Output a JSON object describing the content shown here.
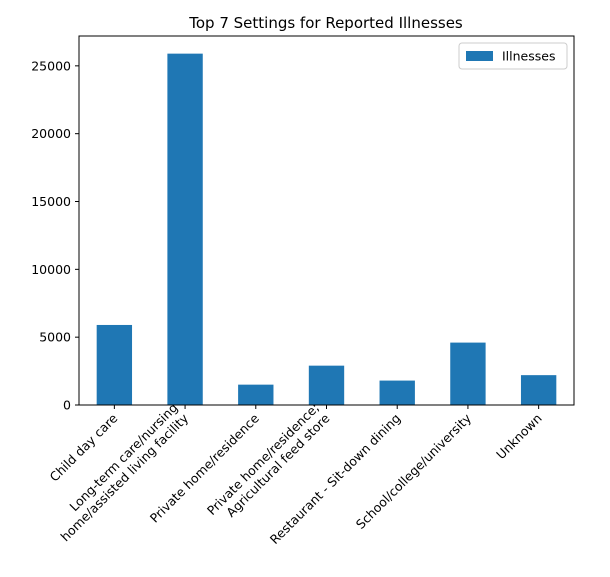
{
  "chart_data": {
    "type": "bar",
    "title": "Top 7 Settings for Reported Illnesses",
    "xlabel": "",
    "ylabel": "",
    "categories": [
      [
        "Child day care"
      ],
      [
        "Long-term care/nursing",
        "home/assisted living facility"
      ],
      [
        "Private home/residence"
      ],
      [
        "Private home/residence;",
        "Agricultural feed store"
      ],
      [
        "Restaurant - Sit-down dining"
      ],
      [
        "School/college/university"
      ],
      [
        "Unknown"
      ]
    ],
    "series": [
      {
        "name": "Illnesses",
        "color": "#1f77b4",
        "values": [
          5900,
          25900,
          1500,
          2900,
          1800,
          4600,
          2200
        ]
      }
    ],
    "ylim": [
      0,
      27200
    ],
    "yticks": [
      0,
      5000,
      10000,
      15000,
      20000,
      25000
    ],
    "legend_position": "top-right",
    "grid": false
  }
}
